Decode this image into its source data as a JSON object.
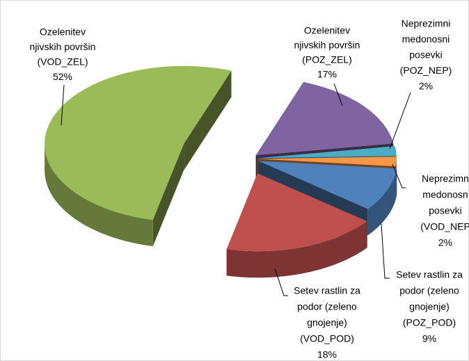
{
  "chart_data": {
    "type": "pie3d",
    "categories": [
      [
        "Ozelenitev",
        "njivskih površin",
        "(POZ_ZEL)"
      ],
      [
        "Neprezimni",
        "medonosni",
        "posevki",
        "(POZ_NEP)"
      ],
      [
        "Neprezimn",
        "medonosn",
        "posevki",
        "(VOD_NEP"
      ],
      [
        "Setev rastlin za",
        "podor (zeleno",
        "gnojenje)",
        "(POZ_POD)"
      ],
      [
        "Setev rastlin za",
        "podor (zeleno",
        "gnojenje)",
        "(VOD_POD)"
      ],
      [
        "Ozelenitev",
        "njivskih površin",
        "(VOD_ZEL)"
      ]
    ],
    "values": [
      17,
      2,
      2,
      9,
      18,
      52
    ],
    "value_labels": [
      "17%",
      "2%",
      "2%",
      "9%",
      "18%",
      "52%"
    ],
    "colors": [
      "#8064a2",
      "#4bacc6",
      "#f79646",
      "#4f81bd",
      "#c0504d",
      "#9bbb59"
    ]
  }
}
